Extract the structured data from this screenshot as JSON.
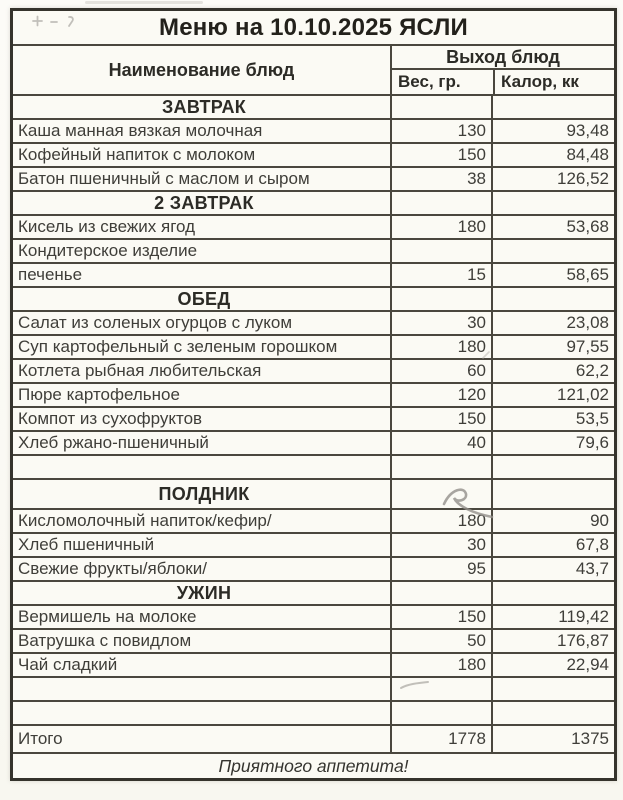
{
  "page": {
    "title": "Меню на 10.10.2025 ЯСЛИ",
    "header": {
      "name_col": "Наименование блюд",
      "output_group": "Выход блюд",
      "weight_col": "Вес, гр.",
      "calories_col": "Калор, кк"
    },
    "rows": [
      {
        "type": "section",
        "name": "ЗАВТРАК"
      },
      {
        "type": "dish",
        "name": "Каша манная вязкая молочная",
        "weight": "130",
        "calories": "93,48"
      },
      {
        "type": "dish",
        "name": "Кофейный напиток с молоком",
        "weight": "150",
        "calories": "84,48"
      },
      {
        "type": "dish",
        "name": "Батон пшеничный с маслом и сыром",
        "weight": "38",
        "calories": "126,52"
      },
      {
        "type": "section",
        "name": "2 ЗАВТРАК"
      },
      {
        "type": "dish",
        "name": "Кисель из свежих ягод",
        "weight": "180",
        "calories": "53,68"
      },
      {
        "type": "dish",
        "name": "Кондитерское изделие",
        "weight": "",
        "calories": ""
      },
      {
        "type": "dish",
        "name": "печенье",
        "weight": "15",
        "calories": "58,65"
      },
      {
        "type": "section",
        "name": "ОБЕД"
      },
      {
        "type": "dish",
        "name": "Салат из соленых огурцов с луком",
        "weight": "30",
        "calories": "23,08"
      },
      {
        "type": "dish",
        "name": "Суп картофельный с зеленым горошком",
        "weight": "180",
        "calories": "97,55"
      },
      {
        "type": "dish",
        "name": "Котлета рыбная любительская",
        "weight": "60",
        "calories": "62,2"
      },
      {
        "type": "dish",
        "name": "Пюре картофельное",
        "weight": "120",
        "calories": "121,02"
      },
      {
        "type": "dish",
        "name": "Компот из сухофруктов",
        "weight": "150",
        "calories": "53,5"
      },
      {
        "type": "dish",
        "name": "Хлеб ржано-пшеничный",
        "weight": "40",
        "calories": "79,6"
      },
      {
        "type": "empty",
        "name": "",
        "weight": "",
        "calories": ""
      },
      {
        "type": "section",
        "name": "ПОЛДНИК",
        "tall": true
      },
      {
        "type": "dish",
        "name": "Кисломолочный напиток/кефир/",
        "weight": "180",
        "calories": "90"
      },
      {
        "type": "dish",
        "name": "Хлеб пшеничный",
        "weight": "30",
        "calories": "67,8"
      },
      {
        "type": "dish",
        "name": "Свежие фрукты/яблоки/",
        "weight": "95",
        "calories": "43,7"
      },
      {
        "type": "section",
        "name": "УЖИН"
      },
      {
        "type": "dish",
        "name": "Вермишель на молоке",
        "weight": "150",
        "calories": "119,42"
      },
      {
        "type": "dish",
        "name": "Ватрушка с повидлом",
        "weight": "50",
        "calories": "176,87"
      },
      {
        "type": "dish",
        "name": "Чай сладкий",
        "weight": "180",
        "calories": "22,94"
      },
      {
        "type": "empty",
        "name": "",
        "weight": "",
        "calories": ""
      },
      {
        "type": "empty",
        "name": "",
        "weight": "",
        "calories": ""
      },
      {
        "type": "total",
        "name": "Итого",
        "weight": "1778",
        "calories": "1375"
      }
    ],
    "footer_note": "Приятного аппетита!",
    "colors": {
      "paper": "#fbfaf5",
      "text": "#3f3e39",
      "border": "#4a473e",
      "title_text": "#23211b"
    }
  }
}
